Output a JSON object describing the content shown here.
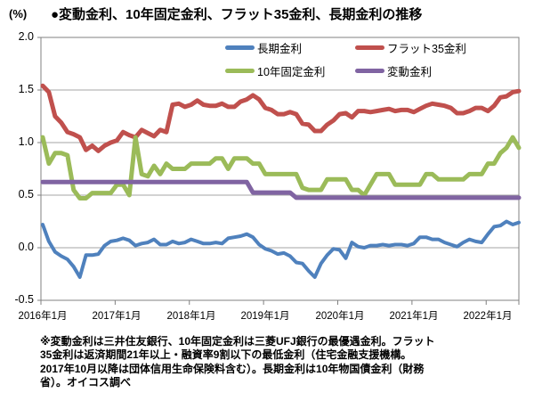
{
  "chart": {
    "percent_label": "(%)",
    "title": "●変動金利、10年固定金利、フラット35金利、長期金利の推移"
  },
  "chart_data": {
    "type": "line",
    "title": "変動金利、10年固定金利、フラット35金利、長期金利の推移",
    "xlabel": "",
    "ylabel": "(%)",
    "ylim": [
      -0.5,
      2.0
    ],
    "ytick_step": 0.5,
    "grid": true,
    "legend_position": "top-inside",
    "ytick_labels": [
      "2.0",
      "1.5",
      "1.0",
      "0.5",
      "0.0",
      "-0.5"
    ],
    "xtick_labels": [
      "2016年1月",
      "2017年1月",
      "2018年1月",
      "2019年1月",
      "2020年1月",
      "2021年1月",
      "2022年1月"
    ],
    "months": [
      "2016-01",
      "2016-02",
      "2016-03",
      "2016-04",
      "2016-05",
      "2016-06",
      "2016-07",
      "2016-08",
      "2016-09",
      "2016-10",
      "2016-11",
      "2016-12",
      "2017-01",
      "2017-02",
      "2017-03",
      "2017-04",
      "2017-05",
      "2017-06",
      "2017-07",
      "2017-08",
      "2017-09",
      "2017-10",
      "2017-11",
      "2017-12",
      "2018-01",
      "2018-02",
      "2018-03",
      "2018-04",
      "2018-05",
      "2018-06",
      "2018-07",
      "2018-08",
      "2018-09",
      "2018-10",
      "2018-11",
      "2018-12",
      "2019-01",
      "2019-02",
      "2019-03",
      "2019-04",
      "2019-05",
      "2019-06",
      "2019-07",
      "2019-08",
      "2019-09",
      "2019-10",
      "2019-11",
      "2019-12",
      "2020-01",
      "2020-02",
      "2020-03",
      "2020-04",
      "2020-05",
      "2020-06",
      "2020-07",
      "2020-08",
      "2020-09",
      "2020-10",
      "2020-11",
      "2020-12",
      "2021-01",
      "2021-02",
      "2021-03",
      "2021-04",
      "2021-05",
      "2021-06",
      "2021-07",
      "2021-08",
      "2021-09",
      "2021-10",
      "2021-11",
      "2021-12",
      "2022-01",
      "2022-02",
      "2022-03",
      "2022-04",
      "2022-05",
      "2022-06"
    ],
    "series": [
      {
        "name": "長期金利",
        "color": "#4F81BD",
        "width": 4,
        "values": [
          0.22,
          0.06,
          -0.04,
          -0.08,
          -0.11,
          -0.18,
          -0.28,
          -0.07,
          -0.07,
          -0.06,
          0.02,
          0.06,
          0.07,
          0.09,
          0.07,
          0.02,
          0.04,
          0.05,
          0.08,
          0.03,
          0.03,
          0.06,
          0.04,
          0.05,
          0.08,
          0.06,
          0.04,
          0.04,
          0.05,
          0.04,
          0.09,
          0.1,
          0.11,
          0.13,
          0.1,
          0.03,
          -0.01,
          -0.03,
          -0.06,
          -0.05,
          -0.08,
          -0.14,
          -0.15,
          -0.22,
          -0.28,
          -0.15,
          -0.07,
          -0.01,
          -0.02,
          -0.1,
          0.05,
          0.01,
          0.0,
          0.02,
          0.02,
          0.03,
          0.02,
          0.03,
          0.03,
          0.02,
          0.04,
          0.1,
          0.1,
          0.08,
          0.08,
          0.05,
          0.03,
          0.01,
          0.05,
          0.08,
          0.06,
          0.05,
          0.13,
          0.2,
          0.21,
          0.25,
          0.22,
          0.24
        ]
      },
      {
        "name": "フラット35金利",
        "color": "#C0504D",
        "width": 5,
        "values": [
          1.54,
          1.48,
          1.25,
          1.19,
          1.1,
          1.08,
          1.05,
          0.93,
          0.97,
          0.92,
          0.97,
          1.0,
          1.02,
          1.1,
          1.07,
          1.05,
          1.12,
          1.09,
          1.06,
          1.12,
          1.1,
          1.36,
          1.37,
          1.34,
          1.36,
          1.4,
          1.36,
          1.35,
          1.35,
          1.37,
          1.34,
          1.34,
          1.39,
          1.41,
          1.45,
          1.41,
          1.33,
          1.31,
          1.27,
          1.27,
          1.29,
          1.27,
          1.18,
          1.17,
          1.11,
          1.11,
          1.17,
          1.21,
          1.27,
          1.28,
          1.24,
          1.3,
          1.3,
          1.29,
          1.3,
          1.31,
          1.32,
          1.3,
          1.31,
          1.31,
          1.29,
          1.32,
          1.35,
          1.37,
          1.36,
          1.35,
          1.33,
          1.28,
          1.28,
          1.3,
          1.33,
          1.33,
          1.3,
          1.35,
          1.43,
          1.44,
          1.48,
          1.49
        ]
      },
      {
        "name": "10年固定金利",
        "color": "#9BBB59",
        "width": 5,
        "values": [
          1.05,
          0.8,
          0.9,
          0.9,
          0.88,
          0.55,
          0.47,
          0.47,
          0.52,
          0.52,
          0.52,
          0.52,
          0.6,
          0.6,
          0.5,
          1.05,
          0.7,
          0.68,
          0.78,
          0.7,
          0.8,
          0.75,
          0.75,
          0.75,
          0.8,
          0.8,
          0.8,
          0.8,
          0.85,
          0.85,
          0.75,
          0.85,
          0.85,
          0.85,
          0.8,
          0.8,
          0.7,
          0.7,
          0.7,
          0.7,
          0.7,
          0.7,
          0.57,
          0.55,
          0.55,
          0.55,
          0.65,
          0.65,
          0.65,
          0.65,
          0.55,
          0.55,
          0.5,
          0.6,
          0.7,
          0.7,
          0.7,
          0.6,
          0.6,
          0.6,
          0.6,
          0.6,
          0.7,
          0.7,
          0.65,
          0.65,
          0.65,
          0.65,
          0.65,
          0.7,
          0.7,
          0.7,
          0.8,
          0.8,
          0.9,
          0.95,
          1.05,
          0.95
        ]
      },
      {
        "name": "変動金利",
        "color": "#8064A2",
        "width": 5,
        "values": [
          0.625,
          0.625,
          0.625,
          0.625,
          0.625,
          0.625,
          0.625,
          0.625,
          0.625,
          0.625,
          0.625,
          0.625,
          0.625,
          0.625,
          0.625,
          0.625,
          0.625,
          0.625,
          0.625,
          0.625,
          0.625,
          0.625,
          0.625,
          0.625,
          0.625,
          0.625,
          0.625,
          0.625,
          0.625,
          0.625,
          0.625,
          0.625,
          0.625,
          0.625,
          0.525,
          0.525,
          0.525,
          0.525,
          0.525,
          0.525,
          0.525,
          0.475,
          0.475,
          0.475,
          0.475,
          0.475,
          0.475,
          0.475,
          0.475,
          0.475,
          0.475,
          0.475,
          0.475,
          0.475,
          0.475,
          0.475,
          0.475,
          0.475,
          0.475,
          0.475,
          0.475,
          0.475,
          0.475,
          0.475,
          0.475,
          0.475,
          0.475,
          0.475,
          0.475,
          0.475,
          0.475,
          0.475,
          0.475,
          0.475,
          0.475,
          0.475,
          0.475,
          0.475
        ]
      }
    ],
    "colors": {
      "grid": "#A6A6A6",
      "border": "#808080",
      "text": "#000000"
    }
  },
  "legend": {
    "items": [
      {
        "label": "長期金利",
        "color": "#4F81BD"
      },
      {
        "label": "フラット35金利",
        "color": "#C0504D"
      },
      {
        "label": "10年固定金利",
        "color": "#9BBB59"
      },
      {
        "label": "変動金利",
        "color": "#8064A2"
      }
    ]
  },
  "footnote": {
    "lines": [
      "※変動金利は三井住友銀行、10年固定金利は三菱UFJ銀行の最優遇金利。フラット",
      "35金利は返済期間21年以上・融資率9割以下の最低金利（住宅金融支援機構。",
      "2017年10月以降は団体信用生命保険料含む）。長期金利は10年物国債金利（財務",
      "省）。オイコス調べ"
    ]
  }
}
